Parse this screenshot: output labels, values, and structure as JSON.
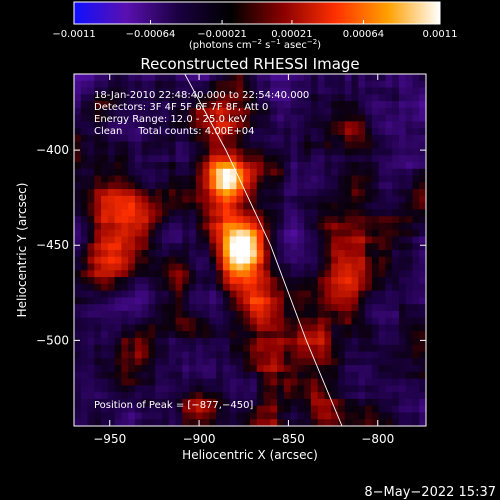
{
  "chart_data": {
    "type": "heatmap",
    "title": "Reconstructed RHESSI Image",
    "xlabel": "Heliocentric X (arcsec)",
    "ylabel": "Heliocentric Y (arcsec)",
    "xlim": [
      -970,
      -773
    ],
    "ylim": [
      -545,
      -360
    ],
    "x_ticks": [
      -950,
      -900,
      -850,
      -800
    ],
    "y_ticks": [
      -400,
      -450,
      -500
    ],
    "x_tick_labels": [
      "−950",
      "−900",
      "−850",
      "−800"
    ],
    "y_tick_labels": [
      "−400",
      "−450",
      "−500"
    ],
    "colorbar": {
      "min": -0.0011,
      "max": 0.0011,
      "ticks": [
        -0.0011,
        -0.00064,
        -0.00021,
        0.00021,
        0.00064,
        0.0011
      ],
      "tick_labels": [
        "−0.0011",
        "−0.00064",
        "−0.00021",
        "0.00021",
        "0.00064",
        "0.0011"
      ],
      "units_text": "(photons cm",
      "units_exp1": "−2",
      "units_mid": " s",
      "units_exp2": "−1",
      "units_mid2": " asec",
      "units_exp3": "−2",
      "units_end": ")",
      "colors": [
        "#1010ff",
        "#5a10b0",
        "#1a0040",
        "#000000",
        "#8a0000",
        "#ff3000",
        "#ffa000",
        "#ffffff"
      ]
    },
    "peaks": [
      {
        "x": -877,
        "y": -450,
        "value": 0.0011
      },
      {
        "x": -883,
        "y": -413,
        "value": 0.0009
      }
    ],
    "limb_curve": [
      [
        -908,
        -360
      ],
      [
        -885,
        -400
      ],
      [
        -860,
        -450
      ],
      [
        -840,
        -500
      ],
      [
        -820,
        -545
      ]
    ],
    "annotations": {
      "line1": "18-Jan-2010 22:48:40.000 to 22:54:40.000",
      "line2": "Detectors: 3F 4F 5F 6F 7F 8F, Att 0",
      "line3": "Energy Range: 12.0 - 25.0 keV",
      "line4": "Clean     Total counts: 4.00E+04",
      "peak_text": "Position of Peak = [−877,−450]"
    },
    "timestamp": "8−May−2022 15:37"
  }
}
